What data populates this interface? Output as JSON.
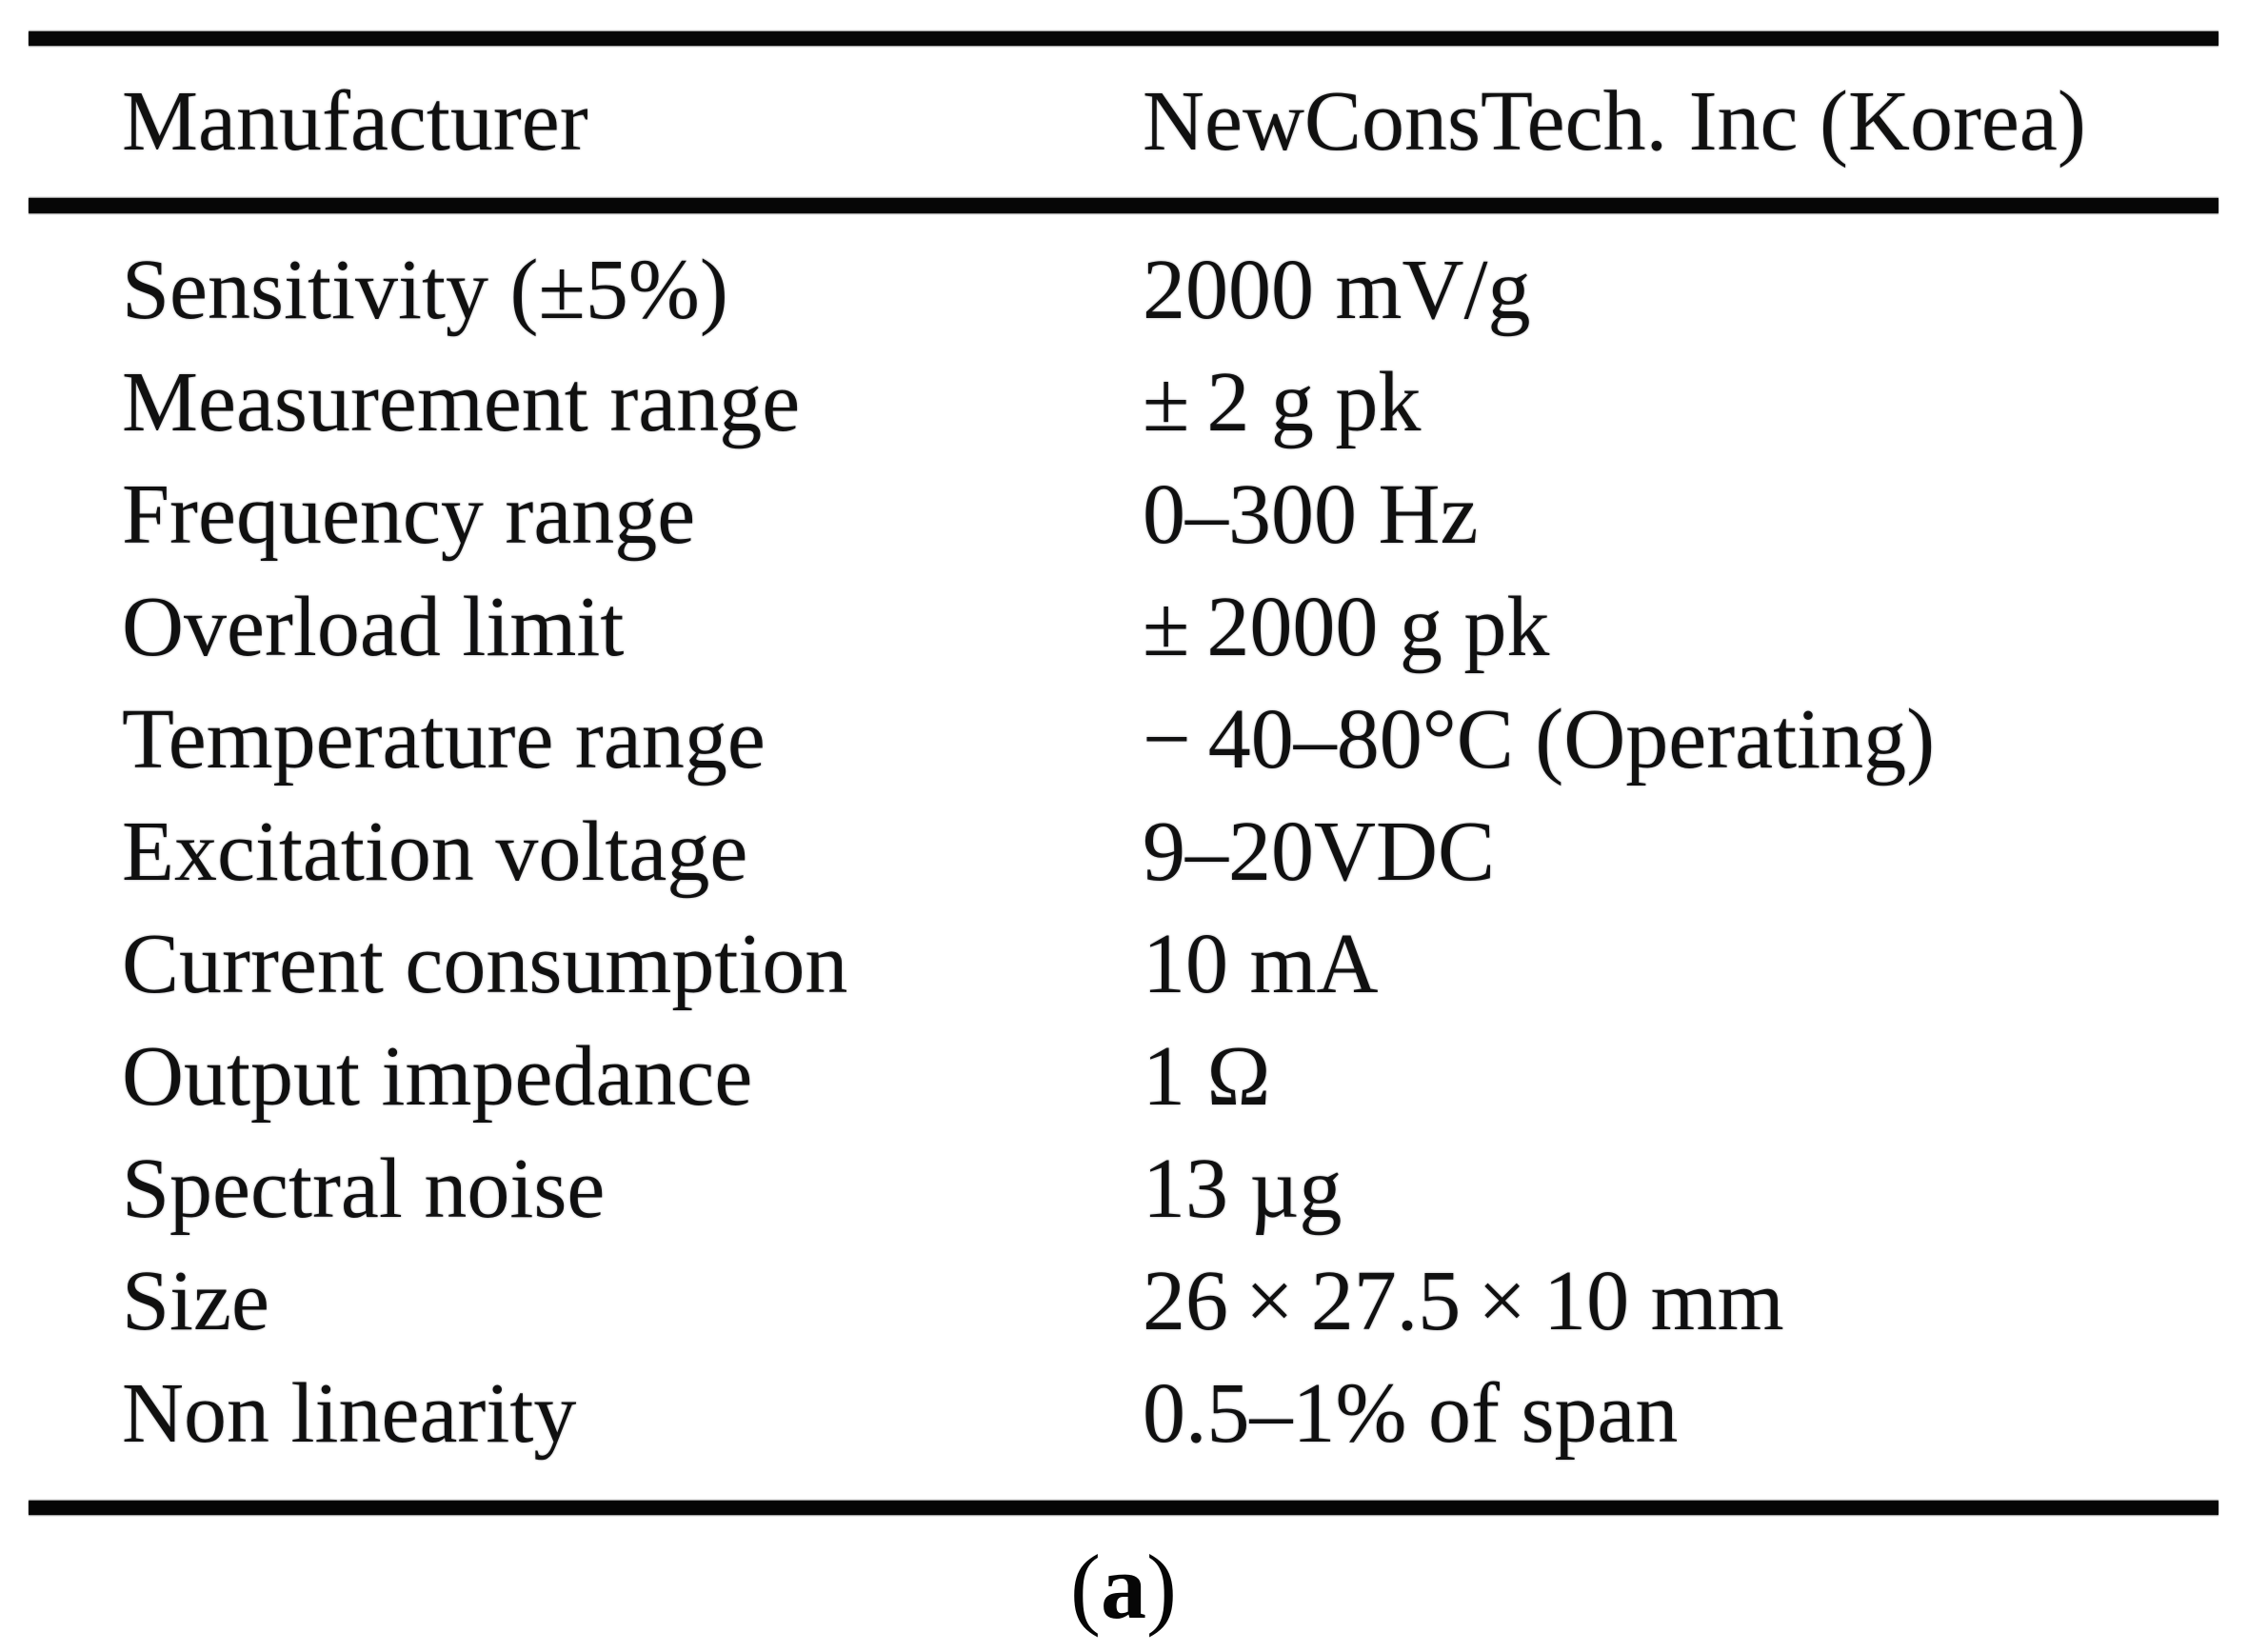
{
  "table": {
    "header": {
      "label": "Manufacturer",
      "value": "NewConsTech. Inc (Korea)"
    },
    "rows": [
      {
        "label": "Sensitivity (±5%)",
        "value": "2000 mV/g"
      },
      {
        "label": "Measurement range",
        "value": "± 2 g pk"
      },
      {
        "label": "Frequency range",
        "value": "0–300 Hz"
      },
      {
        "label": "Overload limit",
        "value": "± 2000 g pk"
      },
      {
        "label": "Temperature range",
        "value": "− 40–80°C (Operating)"
      },
      {
        "label": "Excitation voltage",
        "value": "9–20VDC"
      },
      {
        "label": "Current consumption",
        "value": "10 mA"
      },
      {
        "label": "Output impedance",
        "value": "1 Ω"
      },
      {
        "label": "Spectral noise",
        "value": "13 µg"
      },
      {
        "label": "Size",
        "value": "26 × 27.5 × 10 mm"
      },
      {
        "label": "Non linearity",
        "value": "0.5–1% of span"
      }
    ]
  },
  "caption": {
    "open": "(",
    "letter": "a",
    "close": ")"
  },
  "colors": {
    "background": "#ffffff",
    "text": "#101010",
    "rule": "#060606"
  }
}
